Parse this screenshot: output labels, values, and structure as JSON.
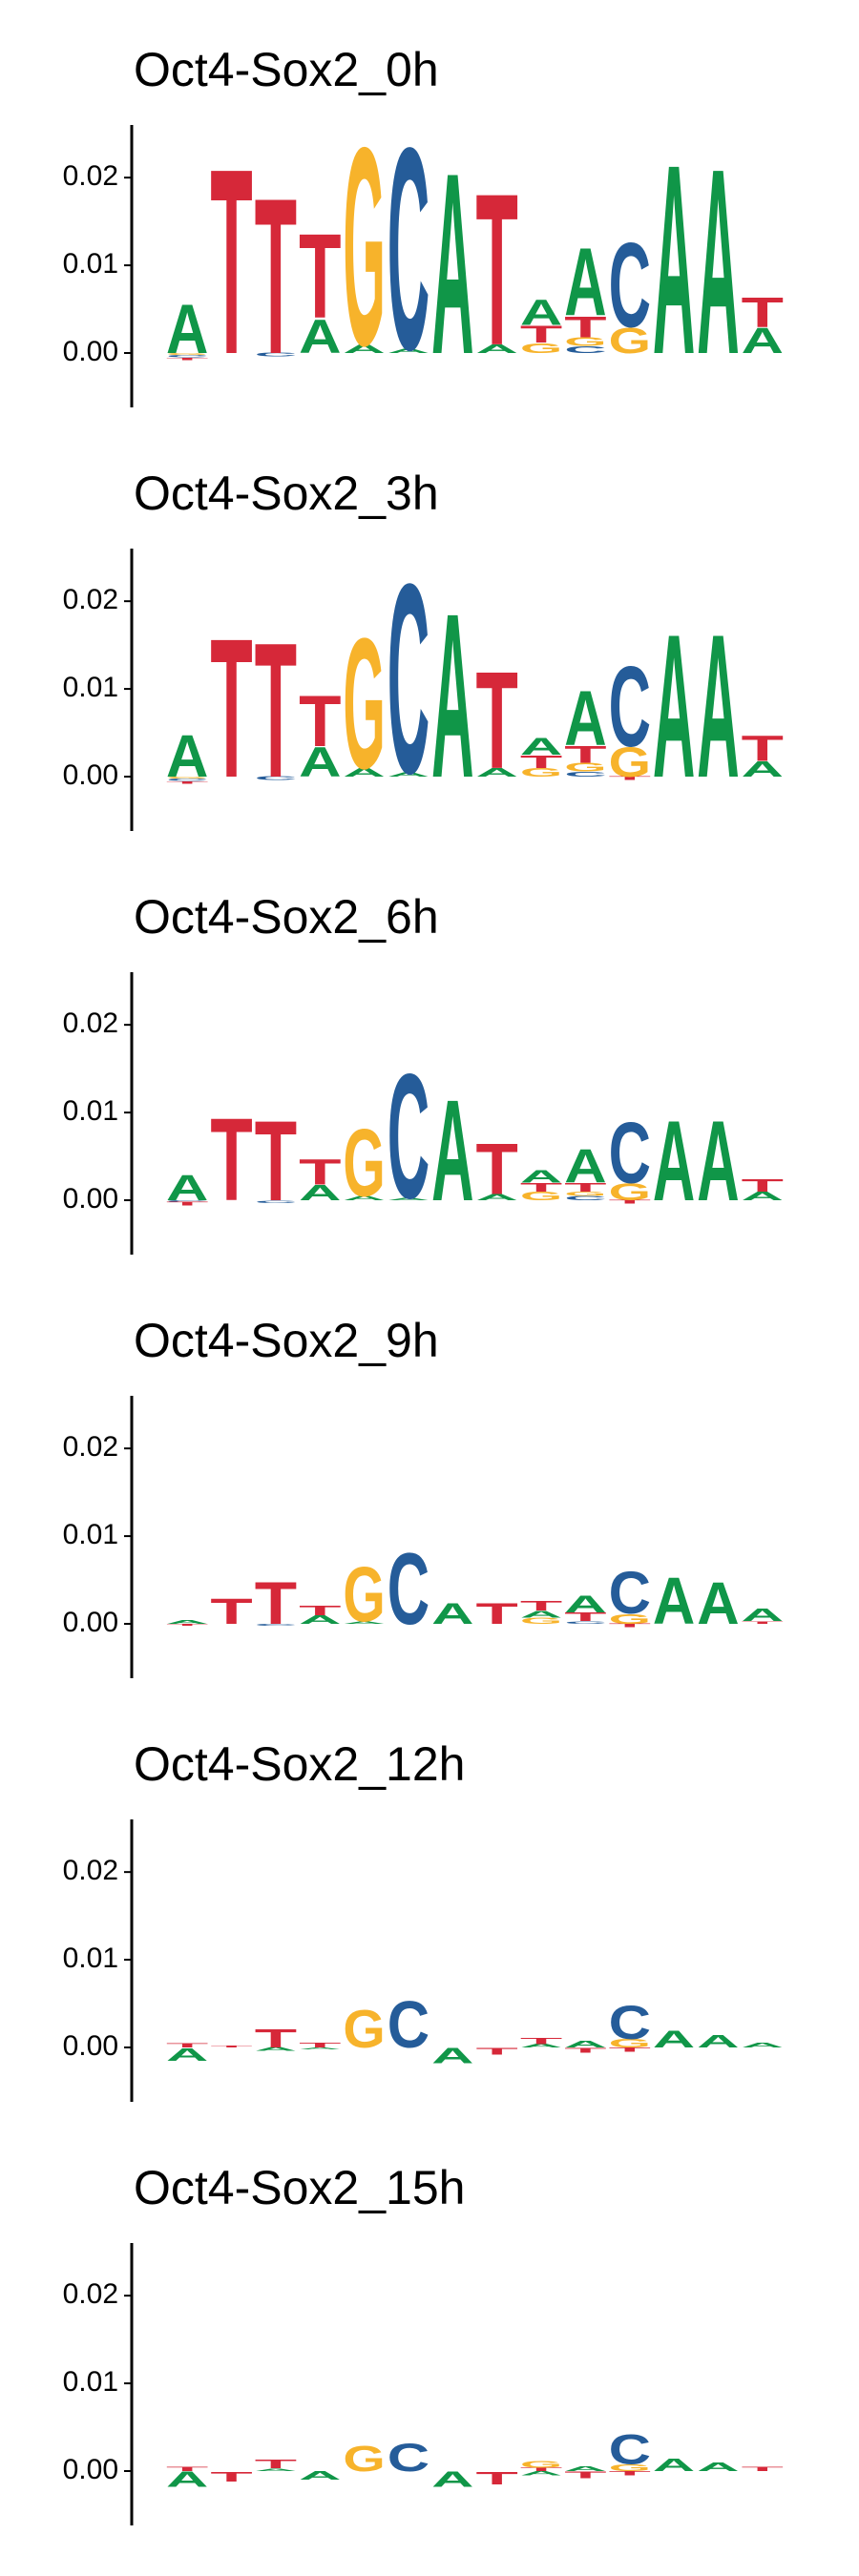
{
  "chart_data": [
    {
      "type": "logo",
      "title": "Oct4-Sox2_0h",
      "ylim": [
        -0.0062,
        0.026
      ],
      "yticks": [
        {
          "value": 0,
          "label": "0.00"
        },
        {
          "value": 0.01,
          "label": "0.01"
        },
        {
          "value": 0.02,
          "label": "0.02"
        }
      ],
      "series": [
        {
          "name": "A",
          "color": "#109648",
          "values": [
            0.0058,
            0,
            0,
            0.004,
            0.001,
            0.0005,
            0.0215,
            0.001,
            0.003,
            0.008,
            0,
            0.0225,
            0.022,
            0.003
          ]
        },
        {
          "name": "C",
          "color": "#255c99",
          "values": [
            -0.0003,
            0,
            -0.0004,
            0,
            0,
            0.024,
            0,
            0,
            0,
            0.0008,
            0.01,
            0,
            0,
            0
          ]
        },
        {
          "name": "G",
          "color": "#f7b32b",
          "values": [
            -0.0002,
            0,
            0,
            0,
            0.0235,
            0,
            0,
            0,
            0.0012,
            0.001,
            0.003,
            0,
            0,
            0
          ]
        },
        {
          "name": "T",
          "color": "#d62839",
          "values": [
            -0.0003,
            0.022,
            0.0185,
            0.01,
            0,
            0,
            0,
            0.018,
            0.002,
            0.0025,
            0,
            0,
            0,
            0.0035
          ]
        }
      ]
    },
    {
      "type": "logo",
      "title": "Oct4-Sox2_3h",
      "ylim": [
        -0.0062,
        0.026
      ],
      "yticks": [
        {
          "value": 0,
          "label": "0.00"
        },
        {
          "value": 0.01,
          "label": "0.01"
        },
        {
          "value": 0.02,
          "label": "0.02"
        }
      ],
      "series": [
        {
          "name": "A",
          "color": "#109648",
          "values": [
            0.005,
            0,
            0,
            0.0035,
            0.001,
            0.0005,
            0.0195,
            0.001,
            0.002,
            0.0065,
            0,
            0.017,
            0.017,
            0.0018
          ]
        },
        {
          "name": "C",
          "color": "#255c99",
          "values": [
            -0.0003,
            0,
            -0.0004,
            0,
            0,
            0.0225,
            0,
            0,
            0,
            0.0006,
            0.0095,
            0,
            0,
            0
          ]
        },
        {
          "name": "G",
          "color": "#f7b32b",
          "values": [
            -0.0002,
            0,
            0,
            0,
            0.0155,
            0,
            0,
            0,
            0.001,
            0.001,
            0.0035,
            0,
            0,
            0
          ]
        },
        {
          "name": "T",
          "color": "#d62839",
          "values": [
            -0.0003,
            0.0165,
            0.016,
            0.006,
            0,
            0,
            0,
            0.0115,
            0.0015,
            0.002,
            -0.0004,
            0,
            0,
            0.003
          ]
        }
      ]
    },
    {
      "type": "logo",
      "title": "Oct4-Sox2_6h",
      "ylim": [
        -0.0062,
        0.026
      ],
      "yticks": [
        {
          "value": 0,
          "label": "0.00"
        },
        {
          "value": 0.01,
          "label": "0.01"
        },
        {
          "value": 0.02,
          "label": "0.02"
        }
      ],
      "series": [
        {
          "name": "A",
          "color": "#109648",
          "values": [
            0.003,
            0,
            0,
            0.0018,
            0.0005,
            0.0003,
            0.012,
            0.0007,
            0.0015,
            0.004,
            0,
            0.0095,
            0.0095,
            0.001
          ]
        },
        {
          "name": "C",
          "color": "#255c99",
          "values": [
            -0.0002,
            0,
            -0.0003,
            0,
            0,
            0.0148,
            0,
            0,
            0,
            0.0005,
            0.0072,
            0,
            0,
            0
          ]
        },
        {
          "name": "G",
          "color": "#f7b32b",
          "values": [
            0,
            0,
            0,
            0,
            0.008,
            0,
            0,
            0,
            0.001,
            0.0005,
            0.002,
            0,
            0,
            0
          ]
        },
        {
          "name": "T",
          "color": "#d62839",
          "values": [
            -0.0004,
            0.0098,
            0.0095,
            0.003,
            0,
            0,
            0,
            0.006,
            0.001,
            0.001,
            -0.0004,
            0,
            0,
            0.0015
          ]
        }
      ]
    },
    {
      "type": "logo",
      "title": "Oct4-Sox2_9h",
      "ylim": [
        -0.0062,
        0.026
      ],
      "yticks": [
        {
          "value": 0,
          "label": "0.00"
        },
        {
          "value": 0.01,
          "label": "0.01"
        },
        {
          "value": 0.02,
          "label": "0.02"
        }
      ],
      "series": [
        {
          "name": "A",
          "color": "#109648",
          "values": [
            0.0004,
            0,
            0,
            0.001,
            0.0003,
            0,
            0.0025,
            0,
            0.0008,
            0.002,
            0,
            0.0055,
            0.005,
            0.0015
          ]
        },
        {
          "name": "C",
          "color": "#255c99",
          "values": [
            0,
            0,
            -0.0002,
            0,
            0,
            0.0085,
            0,
            0,
            0,
            0.0003,
            0.005,
            0,
            0,
            0
          ]
        },
        {
          "name": "G",
          "color": "#f7b32b",
          "values": [
            0,
            0,
            0,
            0,
            0.0065,
            0,
            0,
            0,
            0.0007,
            0,
            0.0012,
            0,
            0,
            0
          ]
        },
        {
          "name": "T",
          "color": "#d62839",
          "values": [
            -0.0002,
            0.003,
            0.005,
            0.0012,
            0,
            0,
            0,
            0.0025,
            0.0012,
            0.001,
            -0.0004,
            0,
            0,
            0.0003
          ]
        }
      ]
    },
    {
      "type": "logo",
      "title": "Oct4-Sox2_12h",
      "ylim": [
        -0.0062,
        0.026
      ],
      "yticks": [
        {
          "value": 0,
          "label": "0.00"
        },
        {
          "value": 0.01,
          "label": "0.01"
        },
        {
          "value": 0.02,
          "label": "0.02"
        }
      ],
      "series": [
        {
          "name": "A",
          "color": "#109648",
          "values": [
            -0.0015,
            0,
            -0.0004,
            -0.0002,
            0,
            0,
            -0.0018,
            0,
            0.0004,
            0.0008,
            0,
            0.002,
            0.0015,
            0.0006
          ]
        },
        {
          "name": "C",
          "color": "#255c99",
          "values": [
            0,
            0,
            0,
            0,
            0,
            0.0055,
            0,
            0,
            0,
            0,
            0.004,
            0,
            0,
            0
          ]
        },
        {
          "name": "G",
          "color": "#f7b32b",
          "values": [
            0,
            0,
            0,
            0,
            0.0045,
            0,
            0,
            0,
            0,
            0,
            0.001,
            0,
            0,
            0
          ]
        },
        {
          "name": "T",
          "color": "#d62839",
          "values": [
            0.0005,
            0.0002,
            0.0022,
            0.0006,
            0,
            0,
            0,
            -0.0008,
            0.0007,
            -0.0006,
            -0.0005,
            0,
            0,
            0
          ]
        }
      ]
    },
    {
      "type": "logo",
      "title": "Oct4-Sox2_15h",
      "ylim": [
        -0.0062,
        0.026
      ],
      "yticks": [
        {
          "value": 0,
          "label": "0.00"
        },
        {
          "value": 0.01,
          "label": "0.01"
        },
        {
          "value": 0.02,
          "label": "0.02"
        }
      ],
      "series": [
        {
          "name": "A",
          "color": "#109648",
          "values": [
            -0.0018,
            0,
            0.0003,
            -0.001,
            0,
            0,
            -0.0018,
            0,
            -0.0005,
            0.0006,
            0,
            0.0015,
            0.001,
            0
          ]
        },
        {
          "name": "C",
          "color": "#255c99",
          "values": [
            0,
            0,
            0,
            0,
            0,
            0.0033,
            0,
            0,
            0,
            0,
            0.0035,
            0,
            0,
            0
          ]
        },
        {
          "name": "G",
          "color": "#f7b32b",
          "values": [
            0,
            0,
            0,
            0,
            0.003,
            0,
            0,
            0,
            0.0008,
            0,
            0.0008,
            0,
            0,
            0
          ]
        },
        {
          "name": "T",
          "color": "#d62839",
          "values": [
            0.0005,
            -0.0012,
            0.001,
            0,
            0,
            0,
            0,
            -0.0015,
            0.0004,
            -0.0008,
            -0.0005,
            0,
            0,
            0.0005
          ]
        }
      ]
    }
  ]
}
